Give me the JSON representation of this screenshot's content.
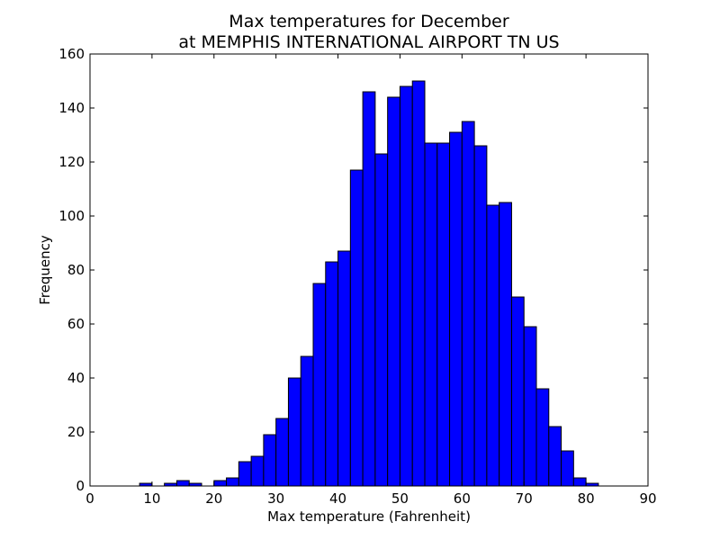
{
  "chart_data": {
    "type": "bar",
    "title": [
      "Max temperatures for December",
      "at MEMPHIS INTERNATIONAL AIRPORT TN US"
    ],
    "xlabel": "Max temperature (Fahrenheit)",
    "ylabel": "Frequency",
    "xlim": [
      0,
      90
    ],
    "ylim": [
      0,
      160
    ],
    "xticks": [
      "0",
      "10",
      "20",
      "30",
      "40",
      "50",
      "60",
      "70",
      "80",
      "90"
    ],
    "yticks": [
      "0",
      "20",
      "40",
      "60",
      "80",
      "100",
      "120",
      "140",
      "160"
    ],
    "bar_color": "#0000ff",
    "edge_color": "#000000",
    "bin_start": 8,
    "bin_width": 2,
    "values": [
      1,
      0,
      1,
      2,
      1,
      0,
      2,
      3,
      9,
      11,
      19,
      25,
      40,
      48,
      75,
      83,
      87,
      117,
      146,
      123,
      144,
      148,
      150,
      127,
      127,
      131,
      135,
      126,
      104,
      105,
      70,
      59,
      36,
      22,
      13,
      3,
      1
    ],
    "grid": false,
    "legend": "none"
  }
}
